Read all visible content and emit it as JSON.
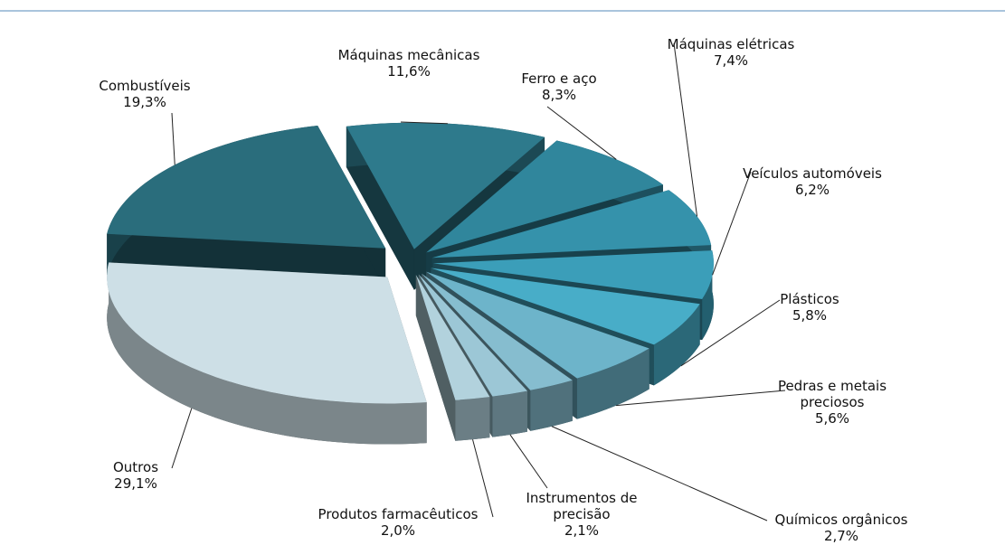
{
  "chart_data": {
    "type": "pie",
    "categories": [
      "Máquinas mecânicas",
      "Ferro e aço",
      "Máquinas elétricas",
      "Veículos automóveis",
      "Plásticos",
      "Pedras e metais preciosos",
      "Químicos orgânicos",
      "Instrumentos de precisão",
      "Produtos farmacêuticos",
      "Outros",
      "Combustíveis"
    ],
    "values": [
      11.6,
      8.3,
      7.4,
      6.2,
      5.8,
      5.6,
      2.7,
      2.1,
      2.0,
      29.1,
      19.3
    ],
    "value_labels": [
      "11,6%",
      "8,3%",
      "7,4%",
      "6,2%",
      "5,8%",
      "5,6%",
      "2,7%",
      "2,1%",
      "2,0%",
      "29,1%",
      "19,3%"
    ],
    "colors": [
      "#2e7a8c",
      "#30869c",
      "#3592ab",
      "#3b9eb9",
      "#48adc8",
      "#6db4ca",
      "#86bdcf",
      "#9cc7d6",
      "#b2d2dd",
      "#cddfe6",
      "#2a6d7c"
    ]
  }
}
